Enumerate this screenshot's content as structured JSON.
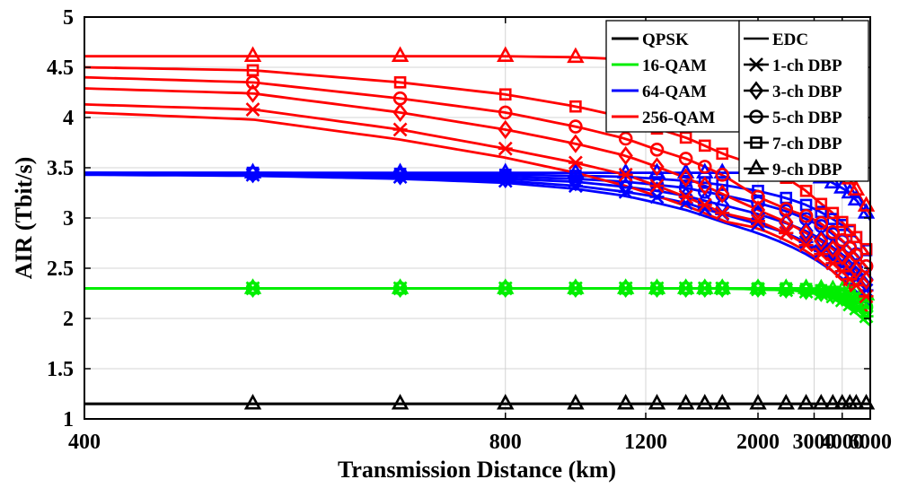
{
  "chart_data": {
    "type": "line",
    "title": "",
    "xlabel": "Transmission Distance (km)",
    "ylabel": "AIR (Tbit/s)",
    "x_scale": "reciprocal",
    "xlim": [
      400,
      6000
    ],
    "ylim": [
      1,
      5
    ],
    "xticks": [
      400,
      800,
      1200,
      2000,
      3000,
      4000,
      6000
    ],
    "xtick_labels": [
      "400",
      "800",
      "1200",
      "2000",
      "3000",
      "4000",
      "6000"
    ],
    "yticks": [
      1,
      1.5,
      2,
      2.5,
      3,
      3.5,
      4,
      4.5,
      5
    ],
    "ytick_labels": [
      "1",
      "1.5",
      "2",
      "2.5",
      "3",
      "3.5",
      "4",
      "4.5",
      "5"
    ],
    "grid": true,
    "legend": {
      "formats": [
        {
          "label": "QPSK",
          "color": "#000000"
        },
        {
          "label": "16-QAM",
          "color": "#00ee00"
        },
        {
          "label": "64-QAM",
          "color": "#0000ff"
        },
        {
          "label": "256-QAM",
          "color": "#ff0000"
        }
      ],
      "schemes": [
        {
          "label": "EDC",
          "marker": "none"
        },
        {
          "label": "1-ch DBP",
          "marker": "x"
        },
        {
          "label": "3-ch DBP",
          "marker": "diamond"
        },
        {
          "label": "5-ch DBP",
          "marker": "circle"
        },
        {
          "label": "7-ch DBP",
          "marker": "square"
        },
        {
          "label": "9-ch DBP",
          "marker": "triangle"
        }
      ],
      "placement": "top-right"
    },
    "marker_x": [
      500,
      640,
      800,
      960,
      1120,
      1250,
      1400,
      1520,
      1650,
      2000,
      2400,
      2800,
      3200,
      3600,
      4000,
      4400,
      4800,
      5600
    ],
    "series": [
      {
        "format": "QPSK",
        "scheme": "EDC",
        "color": "#000000",
        "marker": "none",
        "x": [
          400,
          6000
        ],
        "y": [
          1.15,
          1.15
        ]
      },
      {
        "format": "QPSK",
        "scheme": "9-ch DBP",
        "color": "#000000",
        "marker": "triangle",
        "x": [
          400,
          6000
        ],
        "y": [
          1.15,
          1.15
        ]
      },
      {
        "format": "16-QAM",
        "scheme": "EDC",
        "color": "#00ee00",
        "marker": "none",
        "x": [
          400,
          1000,
          1600,
          2000,
          2500,
          3000,
          3500,
          4000,
          4500,
          5000,
          5500,
          6000
        ],
        "y": [
          2.3,
          2.3,
          2.3,
          2.29,
          2.28,
          2.25,
          2.21,
          2.15,
          2.09,
          2.03,
          1.98,
          1.93
        ]
      },
      {
        "format": "16-QAM",
        "scheme": "1-ch DBP",
        "color": "#00ee00",
        "marker": "x",
        "x": [
          400,
          1000,
          1600,
          2000,
          2500,
          3000,
          3500,
          4000,
          4500,
          5000,
          5500,
          6000
        ],
        "y": [
          2.3,
          2.3,
          2.3,
          2.29,
          2.28,
          2.26,
          2.23,
          2.18,
          2.13,
          2.08,
          2.03,
          1.99
        ]
      },
      {
        "format": "16-QAM",
        "scheme": "3-ch DBP",
        "color": "#00ee00",
        "marker": "diamond",
        "x": [
          400,
          1000,
          1600,
          2000,
          2500,
          3000,
          3500,
          4000,
          4500,
          5000,
          5500,
          6000
        ],
        "y": [
          2.3,
          2.3,
          2.3,
          2.3,
          2.29,
          2.27,
          2.24,
          2.21,
          2.17,
          2.12,
          2.08,
          2.04
        ]
      },
      {
        "format": "16-QAM",
        "scheme": "5-ch DBP",
        "color": "#00ee00",
        "marker": "circle",
        "x": [
          400,
          1000,
          1600,
          2000,
          2500,
          3000,
          3500,
          4000,
          4500,
          5000,
          5500,
          6000
        ],
        "y": [
          2.3,
          2.3,
          2.3,
          2.3,
          2.29,
          2.28,
          2.26,
          2.23,
          2.2,
          2.16,
          2.12,
          2.09
        ]
      },
      {
        "format": "16-QAM",
        "scheme": "7-ch DBP",
        "color": "#00ee00",
        "marker": "square",
        "x": [
          400,
          1000,
          1600,
          2000,
          2500,
          3000,
          3500,
          4000,
          4500,
          5000,
          5500,
          6000
        ],
        "y": [
          2.3,
          2.3,
          2.3,
          2.3,
          2.3,
          2.29,
          2.27,
          2.25,
          2.22,
          2.19,
          2.16,
          2.13
        ]
      },
      {
        "format": "16-QAM",
        "scheme": "9-ch DBP",
        "color": "#00ee00",
        "marker": "triangle",
        "x": [
          400,
          1000,
          1600,
          2000,
          2500,
          3000,
          3500,
          4000,
          4500,
          5000,
          5500,
          6000
        ],
        "y": [
          2.3,
          2.3,
          2.3,
          2.3,
          2.3,
          2.3,
          2.29,
          2.28,
          2.27,
          2.26,
          2.24,
          2.22
        ]
      },
      {
        "format": "64-QAM",
        "scheme": "EDC",
        "color": "#0000ff",
        "marker": "none",
        "x": [
          400,
          500,
          640,
          800,
          960,
          1120,
          1250,
          1400,
          1520,
          1650,
          2000,
          2400,
          2800,
          3200,
          3600,
          4000,
          4400,
          4800,
          5600,
          6000
        ],
        "y": [
          3.43,
          3.42,
          3.39,
          3.35,
          3.29,
          3.22,
          3.15,
          3.08,
          3.02,
          2.96,
          2.85,
          2.74,
          2.64,
          2.55,
          2.47,
          2.4,
          2.33,
          2.27,
          2.16,
          2.11
        ]
      },
      {
        "format": "64-QAM",
        "scheme": "1-ch DBP",
        "color": "#0000ff",
        "marker": "x",
        "x": [
          400,
          500,
          640,
          800,
          960,
          1120,
          1250,
          1400,
          1520,
          1650,
          2000,
          2400,
          2800,
          3200,
          3600,
          4000,
          4400,
          4800,
          5600,
          6000
        ],
        "y": [
          3.44,
          3.43,
          3.41,
          3.37,
          3.32,
          3.26,
          3.21,
          3.15,
          3.09,
          3.04,
          2.94,
          2.85,
          2.76,
          2.67,
          2.59,
          2.52,
          2.45,
          2.39,
          2.28,
          2.24
        ]
      },
      {
        "format": "64-QAM",
        "scheme": "3-ch DBP",
        "color": "#0000ff",
        "marker": "diamond",
        "x": [
          400,
          500,
          640,
          800,
          960,
          1120,
          1250,
          1400,
          1520,
          1650,
          2000,
          2400,
          2800,
          3200,
          3600,
          4000,
          4400,
          4800,
          5600,
          6000
        ],
        "y": [
          3.44,
          3.44,
          3.42,
          3.39,
          3.36,
          3.31,
          3.27,
          3.22,
          3.17,
          3.13,
          3.04,
          2.95,
          2.87,
          2.79,
          2.71,
          2.64,
          2.57,
          2.51,
          2.39,
          2.34
        ]
      },
      {
        "format": "64-QAM",
        "scheme": "5-ch DBP",
        "color": "#0000ff",
        "marker": "circle",
        "x": [
          400,
          500,
          640,
          800,
          960,
          1120,
          1250,
          1400,
          1520,
          1650,
          2000,
          2400,
          2800,
          3200,
          3600,
          4000,
          4400,
          4800,
          5600,
          6000
        ],
        "y": [
          3.45,
          3.44,
          3.43,
          3.41,
          3.39,
          3.36,
          3.33,
          3.3,
          3.26,
          3.23,
          3.15,
          3.07,
          2.99,
          2.92,
          2.84,
          2.77,
          2.71,
          2.64,
          2.52,
          2.46
        ]
      },
      {
        "format": "64-QAM",
        "scheme": "7-ch DBP",
        "color": "#0000ff",
        "marker": "square",
        "x": [
          400,
          500,
          640,
          800,
          960,
          1120,
          1250,
          1400,
          1520,
          1650,
          2000,
          2400,
          2800,
          3200,
          3600,
          4000,
          4400,
          4800,
          5600,
          6000
        ],
        "y": [
          3.45,
          3.45,
          3.44,
          3.43,
          3.42,
          3.41,
          3.39,
          3.37,
          3.35,
          3.33,
          3.27,
          3.2,
          3.13,
          3.06,
          2.99,
          2.93,
          2.87,
          2.81,
          2.68,
          2.62
        ]
      },
      {
        "format": "64-QAM",
        "scheme": "9-ch DBP",
        "color": "#0000ff",
        "marker": "triangle",
        "x": [
          400,
          500,
          640,
          800,
          960,
          1120,
          1250,
          1400,
          1520,
          1650,
          2000,
          2400,
          2800,
          3200,
          3600,
          4000,
          4400,
          4800,
          5600,
          6000
        ],
        "y": [
          3.45,
          3.45,
          3.45,
          3.45,
          3.45,
          3.45,
          3.45,
          3.45,
          3.45,
          3.45,
          3.45,
          3.44,
          3.43,
          3.4,
          3.35,
          3.3,
          3.25,
          3.18,
          3.05,
          2.98
        ]
      },
      {
        "format": "256-QAM",
        "scheme": "EDC",
        "color": "#ff0000",
        "marker": "none",
        "x": [
          400,
          500,
          640,
          800,
          960,
          1120,
          1250,
          1400,
          1520,
          1650,
          2000,
          2400,
          2800,
          3200,
          3600,
          4000,
          4400,
          4800,
          5600,
          6000
        ],
        "y": [
          4.05,
          3.98,
          3.78,
          3.6,
          3.45,
          3.32,
          3.22,
          3.12,
          3.05,
          2.97,
          2.9,
          2.78,
          2.67,
          2.57,
          2.47,
          2.38,
          2.3,
          2.23,
          2.09,
          2.02
        ]
      },
      {
        "format": "256-QAM",
        "scheme": "1-ch DBP",
        "color": "#ff0000",
        "marker": "x",
        "x": [
          400,
          500,
          640,
          800,
          960,
          1120,
          1250,
          1400,
          1520,
          1650,
          2000,
          2400,
          2800,
          3200,
          3600,
          4000,
          4400,
          4800,
          5600,
          6000
        ],
        "y": [
          4.13,
          4.08,
          3.88,
          3.69,
          3.55,
          3.43,
          3.32,
          3.21,
          3.13,
          3.05,
          2.97,
          2.85,
          2.73,
          2.64,
          2.55,
          2.47,
          2.39,
          2.33,
          2.22,
          2.16
        ]
      },
      {
        "format": "256-QAM",
        "scheme": "3-ch DBP",
        "color": "#ff0000",
        "marker": "diamond",
        "x": [
          400,
          500,
          640,
          800,
          960,
          1120,
          1250,
          1400,
          1520,
          1650,
          2000,
          2400,
          2800,
          3200,
          3600,
          4000,
          4400,
          4800,
          5600,
          6000
        ],
        "y": [
          4.29,
          4.24,
          4.05,
          3.88,
          3.74,
          3.62,
          3.51,
          3.4,
          3.32,
          3.24,
          3.08,
          2.96,
          2.85,
          2.77,
          2.69,
          2.62,
          2.55,
          2.48,
          2.38,
          2.33
        ]
      },
      {
        "format": "256-QAM",
        "scheme": "5-ch DBP",
        "color": "#ff0000",
        "marker": "circle",
        "x": [
          400,
          500,
          640,
          800,
          960,
          1120,
          1250,
          1400,
          1520,
          1650,
          2000,
          2400,
          2800,
          3200,
          3600,
          4000,
          4400,
          4800,
          5600,
          6000
        ],
        "y": [
          4.4,
          4.35,
          4.19,
          4.05,
          3.91,
          3.79,
          3.68,
          3.59,
          3.51,
          3.43,
          3.21,
          3.09,
          3.02,
          2.95,
          2.86,
          2.78,
          2.7,
          2.63,
          2.52,
          2.47
        ]
      },
      {
        "format": "256-QAM",
        "scheme": "7-ch DBP",
        "color": "#ff0000",
        "marker": "square",
        "x": [
          400,
          500,
          640,
          800,
          960,
          1120,
          1250,
          1400,
          1520,
          1650,
          2000,
          2400,
          2800,
          3200,
          3600,
          4000,
          4400,
          4800,
          5600,
          6000
        ],
        "y": [
          4.5,
          4.47,
          4.35,
          4.23,
          4.11,
          4.0,
          3.89,
          3.8,
          3.72,
          3.64,
          3.52,
          3.4,
          3.27,
          3.14,
          3.05,
          2.96,
          2.88,
          2.81,
          2.69,
          2.62
        ]
      },
      {
        "format": "256-QAM",
        "scheme": "9-ch DBP",
        "color": "#ff0000",
        "marker": "triangle",
        "x": [
          400,
          500,
          640,
          800,
          960,
          1120,
          1250,
          1400,
          1520,
          1650,
          2000,
          2400,
          2800,
          3200,
          3600,
          4000,
          4400,
          4800,
          5600,
          6000
        ],
        "y": [
          4.61,
          4.61,
          4.61,
          4.61,
          4.6,
          4.58,
          4.55,
          4.51,
          4.45,
          4.39,
          4.28,
          4.1,
          3.97,
          3.8,
          3.64,
          3.5,
          3.39,
          3.28,
          3.12,
          3.03
        ]
      }
    ]
  }
}
